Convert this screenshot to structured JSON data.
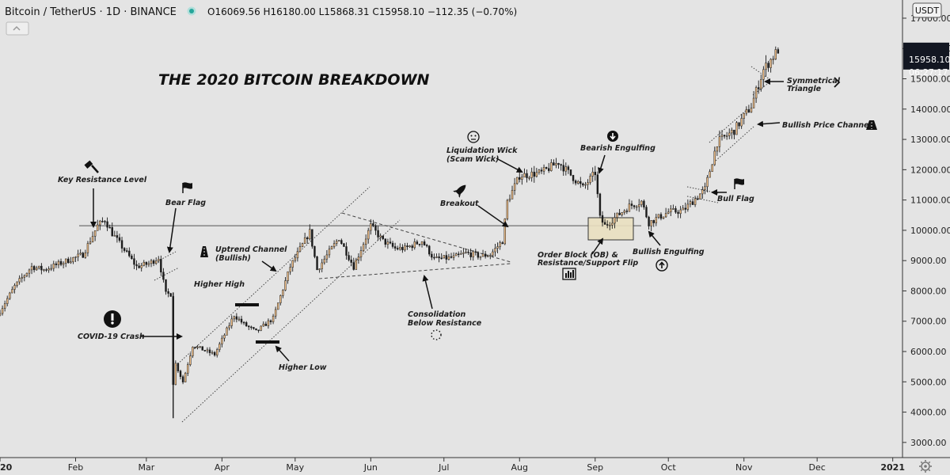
{
  "header": {
    "symbol": "Bitcoin / TetherUS · 1D · BINANCE",
    "ohlc": "O16069.56 H16180.00 L15868.31 C15958.10 −112.35 (−0.70%)",
    "currency": "USDT"
  },
  "price_label": {
    "value": "15958.10",
    "countdown": "06:27:17"
  },
  "icons": {
    "status-dot": "green-dot-icon",
    "collapse": "chevron-collapse-icon",
    "settings": "gear-icon",
    "colors": {
      "candle": "#f4c28a",
      "wick": "#1a1a1a",
      "up_outline": "#1a1a1a",
      "accent": "#26a69a",
      "price_badge": "#131722"
    }
  },
  "chart_data": {
    "type": "candlestick",
    "title": "THE 2020 BITCOIN BREAKDOWN",
    "y_axis": {
      "ylim": [
        2500,
        17600
      ],
      "ticks": [
        3000,
        4000,
        5000,
        6000,
        7000,
        8000,
        9000,
        10000,
        11000,
        12000,
        13000,
        14000,
        15000,
        16000,
        17000
      ],
      "tick_labels": [
        "3000.00",
        "4000.00",
        "5000.00",
        "6000.00",
        "7000.00",
        "8000.00",
        "9000.00",
        "10000.00",
        "11000.00",
        "12000.00",
        "13000.00",
        "14000.00",
        "15000.00",
        "16000.00",
        "17000.00"
      ]
    },
    "x_axis": {
      "range": [
        "2020-01-01",
        "2021-01-05"
      ],
      "ticks": [
        {
          "date": "2020-01-01",
          "label": "2020"
        },
        {
          "date": "2020-02-01",
          "label": "Feb"
        },
        {
          "date": "2020-03-01",
          "label": "Mar"
        },
        {
          "date": "2020-04-01",
          "label": "Apr"
        },
        {
          "date": "2020-05-01",
          "label": "May"
        },
        {
          "date": "2020-06-01",
          "label": "Jun"
        },
        {
          "date": "2020-07-01",
          "label": "Jul"
        },
        {
          "date": "2020-08-01",
          "label": "Aug"
        },
        {
          "date": "2020-09-01",
          "label": "Sep"
        },
        {
          "date": "2020-10-01",
          "label": "Oct"
        },
        {
          "date": "2020-11-01",
          "label": "Nov"
        },
        {
          "date": "2020-12-01",
          "label": "Dec"
        },
        {
          "date": "2021-01-01",
          "label": "2021"
        }
      ]
    },
    "grid": false,
    "close_path": [
      [
        "2019-12-31",
        7200
      ],
      [
        "2020-01-07",
        8150
      ],
      [
        "2020-01-14",
        8800
      ],
      [
        "2020-01-19",
        8700
      ],
      [
        "2020-02-04",
        9200
      ],
      [
        "2020-02-10",
        10150
      ],
      [
        "2020-02-13",
        10350
      ],
      [
        "2020-02-16",
        9900
      ],
      [
        "2020-02-26",
        8800
      ],
      [
        "2020-03-02",
        8900
      ],
      [
        "2020-03-06",
        9100
      ],
      [
        "2020-03-09",
        7900
      ],
      [
        "2020-03-11",
        7900
      ],
      [
        "2020-03-12",
        4950
      ],
      [
        "2020-03-13",
        5600
      ],
      [
        "2020-03-16",
        5000
      ],
      [
        "2020-03-20",
        6200
      ],
      [
        "2020-03-29",
        5900
      ],
      [
        "2020-04-06",
        7200
      ],
      [
        "2020-04-10",
        6900
      ],
      [
        "2020-04-15",
        6650
      ],
      [
        "2020-04-22",
        7100
      ],
      [
        "2020-04-29",
        8800
      ],
      [
        "2020-05-07",
        9950
      ],
      [
        "2020-05-10",
        8700
      ],
      [
        "2020-05-19",
        9750
      ],
      [
        "2020-05-25",
        8800
      ],
      [
        "2020-06-01",
        10150
      ],
      [
        "2020-06-06",
        9650
      ],
      [
        "2020-06-11",
        9400
      ],
      [
        "2020-06-15",
        9400
      ],
      [
        "2020-06-22",
        9650
      ],
      [
        "2020-06-27",
        9050
      ],
      [
        "2020-07-05",
        9100
      ],
      [
        "2020-07-10",
        9250
      ],
      [
        "2020-07-16",
        9150
      ],
      [
        "2020-07-20",
        9200
      ],
      [
        "2020-07-25",
        9650
      ],
      [
        "2020-07-27",
        10950
      ],
      [
        "2020-08-01",
        11800
      ],
      [
        "2020-08-10",
        11900
      ],
      [
        "2020-08-17",
        12250
      ],
      [
        "2020-08-27",
        11400
      ],
      [
        "2020-09-01",
        11900
      ],
      [
        "2020-09-03",
        10400
      ],
      [
        "2020-09-05",
        10150
      ],
      [
        "2020-09-15",
        10800
      ],
      [
        "2020-09-20",
        10950
      ],
      [
        "2020-09-23",
        10250
      ],
      [
        "2020-10-01",
        10600
      ],
      [
        "2020-10-07",
        10650
      ],
      [
        "2020-10-16",
        11350
      ],
      [
        "2020-10-21",
        12900
      ],
      [
        "2020-10-28",
        13300
      ],
      [
        "2020-11-04",
        14100
      ],
      [
        "2020-11-09",
        15300
      ],
      [
        "2020-11-15",
        15958
      ]
    ],
    "annotations": [
      {
        "label": "Key Resistance Level",
        "level": 10150
      },
      {
        "label": "Bear Flag"
      },
      {
        "label": "COVID-19 Crash"
      },
      {
        "label": "Higher High"
      },
      {
        "label": "Higher Low"
      },
      {
        "label": "Uptrend Channel",
        "sub": "(Bullish)"
      },
      {
        "label": "Consolidation",
        "sub": "Below Resistance"
      },
      {
        "label": "Breakout"
      },
      {
        "label": "Liquidation Wick",
        "sub": "(Scam Wick)"
      },
      {
        "label": "Bearish Engulfing"
      },
      {
        "label": "Order Block (OB) &",
        "sub": "Resistance/Support Flip"
      },
      {
        "label": "Bullish Engulfing"
      },
      {
        "label": "Bull Flag"
      },
      {
        "label": "Bullish Price Channel"
      },
      {
        "label": "Symmetrical",
        "sub": "Triangle"
      }
    ]
  }
}
